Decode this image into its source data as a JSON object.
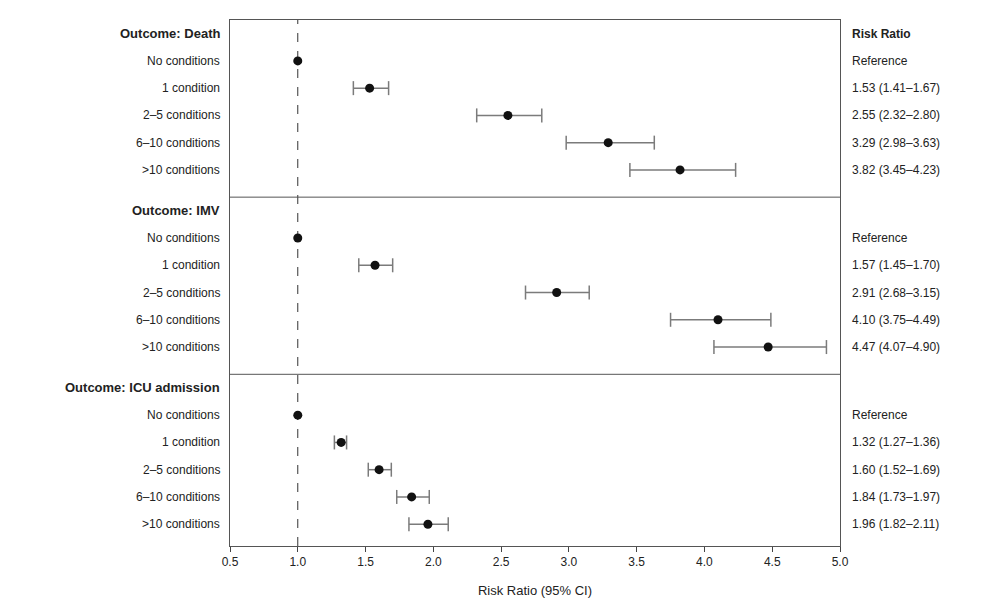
{
  "chart_data": {
    "type": "forest",
    "xlabel": "Risk Ratio (95% CI)",
    "annotations": [
      "Risk Ratio"
    ],
    "xlim": [
      0.5,
      5.0
    ],
    "xticks": [
      0.5,
      {
        "value": 1.0,
        "label": "1.0"
      },
      1.5,
      {
        "value": 2.0,
        "label": "2.0"
      },
      2.5,
      {
        "value": 3.0,
        "label": "3.0"
      },
      3.5,
      {
        "value": 4.0,
        "label": "4.0"
      },
      4.5,
      {
        "value": 5.0,
        "label": "5.0"
      }
    ],
    "grid": false,
    "color": "#111111",
    "reference_line": 1.0,
    "panels": [
      {
        "title": "Outcome: Death",
        "categories": [
          "No conditions",
          "1 condition",
          "2–5 conditions",
          "6–10 conditions",
          ">10 conditions"
        ],
        "values": [
          1.0,
          1.53,
          2.55,
          3.29,
          3.82
        ],
        "ci_lo": [
          1.0,
          1.41,
          2.32,
          2.98,
          3.45
        ],
        "ci_hi": [
          1.0,
          1.67,
          2.8,
          3.63,
          4.23
        ],
        "value_labels": [
          "Reference",
          "1.53 (1.41–1.67)",
          "2.55 (2.32–2.80)",
          "3.29 (2.98–3.63)",
          "3.82 (3.45–4.23)"
        ]
      },
      {
        "title": "Outcome: IMV",
        "categories": [
          "No conditions",
          "1 condition",
          "2–5 conditions",
          "6–10 conditions",
          ">10 conditions"
        ],
        "values": [
          1.0,
          1.57,
          2.91,
          4.1,
          4.47
        ],
        "ci_lo": [
          1.0,
          1.45,
          2.68,
          3.75,
          4.07
        ],
        "ci_hi": [
          1.0,
          1.7,
          3.15,
          4.49,
          4.9
        ],
        "value_labels": [
          "Reference",
          "1.57 (1.45–1.70)",
          "2.91 (2.68–3.15)",
          "4.10 (3.75–4.49)",
          "4.47 (4.07–4.90)"
        ]
      },
      {
        "title": "Outcome: ICU admission",
        "categories": [
          "No conditions",
          "1 condition",
          "2–5 conditions",
          "6–10 conditions",
          ">10 conditions"
        ],
        "values": [
          1.0,
          1.32,
          1.6,
          1.84,
          1.96
        ],
        "ci_lo": [
          1.0,
          1.27,
          1.52,
          1.73,
          1.82
        ],
        "ci_hi": [
          1.0,
          1.36,
          1.69,
          1.97,
          2.11
        ],
        "value_labels": [
          "Reference",
          "1.32 (1.27–1.36)",
          "1.60 (1.52–1.69)",
          "1.84 (1.73–1.97)",
          "1.96 (1.82–2.11)"
        ]
      }
    ]
  }
}
